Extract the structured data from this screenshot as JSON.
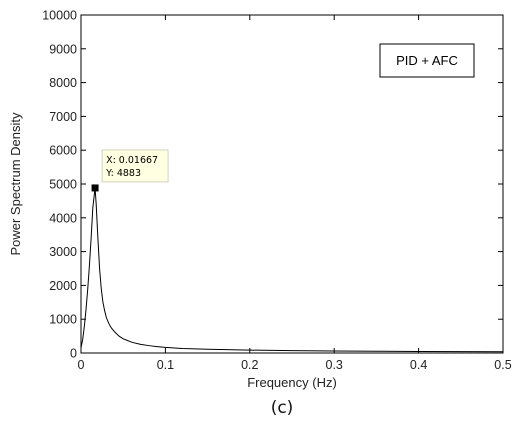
{
  "chart_data": {
    "type": "line",
    "xlabel": "Frequency (Hz)",
    "ylabel": "Power Spectrum Density",
    "xlim": [
      0,
      0.5
    ],
    "ylim": [
      0,
      10000
    ],
    "xticks": [
      "0",
      "0.1",
      "0.2",
      "0.3",
      "0.4",
      "0.5"
    ],
    "yticks": [
      "0",
      "1000",
      "2000",
      "3000",
      "4000",
      "5000",
      "6000",
      "7000",
      "8000",
      "9000",
      "10000"
    ],
    "legend": "PID + AFC",
    "grid": false,
    "series": [
      {
        "x": [
          0,
          0.002,
          0.004,
          0.006,
          0.008,
          0.01,
          0.012,
          0.014,
          0.01667,
          0.018,
          0.02,
          0.022,
          0.024,
          0.026,
          0.028,
          0.03,
          0.033,
          0.036,
          0.04,
          0.045,
          0.05,
          0.06,
          0.07,
          0.08,
          0.09,
          0.1,
          0.12,
          0.15,
          0.2,
          0.25,
          0.3,
          0.35,
          0.4,
          0.45,
          0.5
        ],
        "y": [
          150,
          400,
          800,
          1300,
          1900,
          2600,
          3400,
          4300,
          4883,
          4400,
          3400,
          2500,
          1900,
          1500,
          1250,
          1050,
          870,
          740,
          620,
          500,
          420,
          320,
          260,
          220,
          190,
          165,
          135,
          110,
          85,
          70,
          60,
          52,
          46,
          42,
          38
        ]
      }
    ],
    "datatip": {
      "x_text": "X: 0.01667",
      "y_text": "Y: 4883",
      "x": 0.01667,
      "y": 4883
    }
  },
  "caption": "(c)"
}
